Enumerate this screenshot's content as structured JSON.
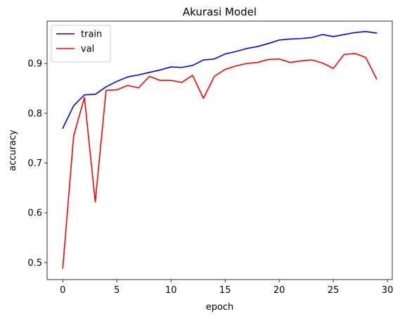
{
  "chart_data": {
    "type": "line",
    "title": "Akurasi Model",
    "xlabel": "epoch",
    "ylabel": "accuracy",
    "xlim": [
      -1.45,
      30.45
    ],
    "ylim": [
      0.466,
      0.985
    ],
    "xticks": [
      0,
      5,
      10,
      15,
      20,
      25,
      30
    ],
    "yticks": [
      0.5,
      0.6,
      0.7,
      0.8,
      0.9
    ],
    "xtick_labels": [
      "0",
      "5",
      "10",
      "15",
      "20",
      "25",
      "30"
    ],
    "ytick_labels": [
      "0.5",
      "0.6",
      "0.7",
      "0.8",
      "0.9"
    ],
    "grid": false,
    "legend_position": "upper-left",
    "x": [
      0,
      1,
      2,
      3,
      4,
      5,
      6,
      7,
      8,
      9,
      10,
      11,
      12,
      13,
      14,
      15,
      16,
      17,
      18,
      19,
      20,
      21,
      22,
      23,
      24,
      25,
      26,
      27,
      28,
      29
    ],
    "series": [
      {
        "name": "train",
        "color": "#0000ff",
        "values": [
          0.77,
          0.815,
          0.837,
          0.838,
          0.853,
          0.864,
          0.873,
          0.877,
          0.882,
          0.887,
          0.893,
          0.892,
          0.896,
          0.907,
          0.909,
          0.919,
          0.924,
          0.93,
          0.934,
          0.94,
          0.947,
          0.949,
          0.95,
          0.952,
          0.958,
          0.954,
          0.958,
          0.962,
          0.964,
          0.961
        ]
      },
      {
        "name": "val",
        "color": "#ff0000",
        "values": [
          0.489,
          0.754,
          0.832,
          0.622,
          0.846,
          0.847,
          0.856,
          0.851,
          0.874,
          0.866,
          0.866,
          0.862,
          0.876,
          0.83,
          0.874,
          0.888,
          0.895,
          0.9,
          0.902,
          0.908,
          0.909,
          0.902,
          0.905,
          0.907,
          0.901,
          0.89,
          0.918,
          0.92,
          0.912,
          0.869
        ]
      }
    ]
  }
}
